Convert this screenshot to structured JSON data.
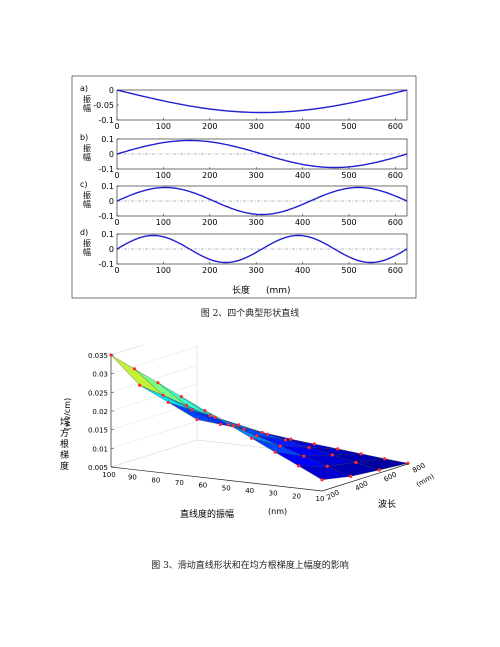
{
  "captions": {
    "fig1": "图 2、四个典型形状直线",
    "fig2": "图 3、滑动直线形状和在均方根梯度上幅度的影响"
  },
  "chart_data": [
    {
      "type": "line",
      "x_unit": "(mm)",
      "xlabel": "长度",
      "ylabel": "振幅",
      "colors": {
        "curve": "#2020d0",
        "reference": "#9a9ab0"
      },
      "panels": [
        {
          "label": "a)",
          "xlim": [
            0,
            625
          ],
          "ylim": [
            -0.1,
            0
          ],
          "yticks": [
            -0.1,
            -0.05,
            0
          ],
          "xticks": [
            0,
            100,
            200,
            300,
            400,
            500,
            600
          ],
          "shape": "half-sine",
          "amplitude": -0.075,
          "cycles": 0.5
        },
        {
          "label": "b)",
          "xlim": [
            0,
            625
          ],
          "ylim": [
            -0.1,
            0.1
          ],
          "yticks": [
            -0.1,
            0,
            0.1
          ],
          "xticks": [
            0,
            100,
            200,
            300,
            400,
            500,
            600
          ],
          "shape": "sine",
          "amplitude": 0.09,
          "cycles": 1
        },
        {
          "label": "c)",
          "xlim": [
            0,
            625
          ],
          "ylim": [
            -0.1,
            0.1
          ],
          "yticks": [
            -0.1,
            0,
            0.1
          ],
          "xticks": [
            0,
            100,
            200,
            300,
            400,
            500,
            600
          ],
          "shape": "sine",
          "amplitude": 0.09,
          "cycles": 1.5
        },
        {
          "label": "d)",
          "xlim": [
            0,
            625
          ],
          "ylim": [
            -0.1,
            0.1
          ],
          "yticks": [
            -0.1,
            0,
            0.1
          ],
          "xticks": [
            0,
            100,
            200,
            300,
            400,
            500,
            600
          ],
          "shape": "sine",
          "amplitude": 0.09,
          "cycles": 2
        }
      ]
    },
    {
      "type": "surface",
      "zlabel": "(wv/cm)",
      "zlabel_cn": "均方根梯度",
      "xlabel": "直线度的振幅",
      "x_unit": "(nm)",
      "ylabel": "波长",
      "y_unit": "(mm)",
      "zticks": [
        0.005,
        0.01,
        0.015,
        0.02,
        0.025,
        0.03,
        0.035
      ],
      "zlim": [
        0.005,
        0.035
      ],
      "amplitude_ticks": [
        100,
        90,
        80,
        70,
        60,
        50,
        40,
        30,
        20,
        10
      ],
      "wavelength_ticks": [
        200,
        400,
        600,
        800
      ],
      "amplitude_grid": [
        100,
        90,
        80,
        70,
        60,
        50,
        40,
        30,
        20,
        10
      ],
      "wavelength_grid": [
        200,
        400,
        600,
        800
      ],
      "z_values": [
        [
          0.035,
          0.032,
          0.029,
          0.026,
          0.023,
          0.02,
          0.017,
          0.014,
          0.011,
          0.008
        ],
        [
          0.0245,
          0.0225,
          0.0205,
          0.0185,
          0.0165,
          0.0145,
          0.0125,
          0.0105,
          0.0085,
          0.0065
        ],
        [
          0.0175,
          0.0162,
          0.0149,
          0.0136,
          0.0123,
          0.011,
          0.0097,
          0.0084,
          0.0071,
          0.0058
        ],
        [
          0.0105,
          0.0099,
          0.0093,
          0.0087,
          0.0081,
          0.0075,
          0.0069,
          0.0063,
          0.0057,
          0.0052
        ]
      ],
      "colors": {
        "marker": "#ff2a2a"
      }
    }
  ]
}
